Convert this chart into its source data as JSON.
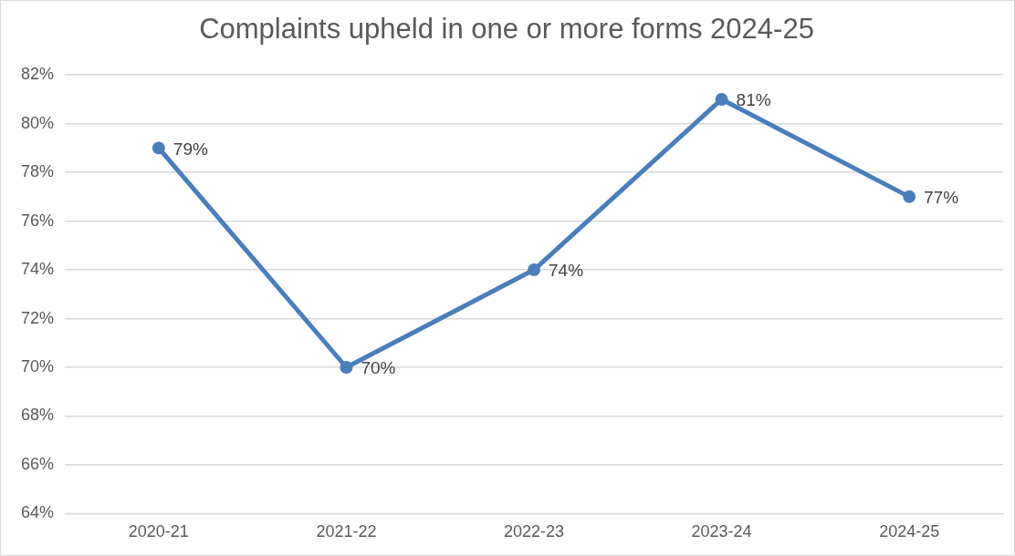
{
  "chart_data": {
    "type": "line",
    "title": "Complaints upheld in one or more forms 2024-25",
    "categories": [
      "2020-21",
      "2021-22",
      "2022-23",
      "2023-24",
      "2024-25"
    ],
    "series": [
      {
        "color": "#4a7ebb",
        "values": [
          79,
          70,
          74,
          81,
          77
        ],
        "value_labels": [
          "79%",
          "70%",
          "74%",
          "81%",
          "77%"
        ]
      }
    ],
    "ylim": [
      64,
      82
    ],
    "yticks": [
      {
        "value": 64,
        "label": "64%"
      },
      {
        "value": 66,
        "label": "66%"
      },
      {
        "value": 68,
        "label": "68%"
      },
      {
        "value": 70,
        "label": "70%"
      },
      {
        "value": 72,
        "label": "72%"
      },
      {
        "value": 74,
        "label": "74%"
      },
      {
        "value": 76,
        "label": "76%"
      },
      {
        "value": 78,
        "label": "78%"
      },
      {
        "value": 80,
        "label": "80%"
      },
      {
        "value": 82,
        "label": "82%"
      }
    ],
    "grid": "y",
    "legend": false,
    "marker": "circle",
    "line_style": "solid"
  }
}
